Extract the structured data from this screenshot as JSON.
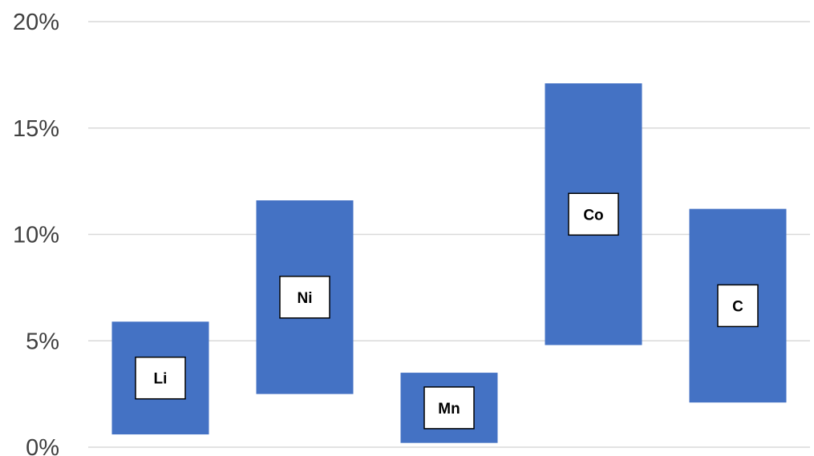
{
  "chart_data": {
    "type": "bar",
    "subtype": "floating-range",
    "title": "",
    "xlabel": "",
    "ylabel": "",
    "ylim": [
      0,
      0.2
    ],
    "y_tick_format": "percent",
    "y_ticks": [
      {
        "value": 0.0,
        "label": "0%"
      },
      {
        "value": 0.05,
        "label": "5%"
      },
      {
        "value": 0.1,
        "label": "10%"
      },
      {
        "value": 0.15,
        "label": "15%"
      },
      {
        "value": 0.2,
        "label": "20%"
      }
    ],
    "grid": true,
    "legend": "none",
    "bar_color": "#4472C4",
    "categories": [
      "Li",
      "Ni",
      "Mn",
      "Co",
      "C"
    ],
    "ranges": [
      {
        "label": "Li",
        "low": 0.006,
        "high": 0.059
      },
      {
        "label": "Ni",
        "low": 0.025,
        "high": 0.116
      },
      {
        "label": "Mn",
        "low": 0.002,
        "high": 0.035
      },
      {
        "label": "Co",
        "low": 0.048,
        "high": 0.171
      },
      {
        "label": "C",
        "low": 0.021,
        "high": 0.112
      }
    ]
  }
}
